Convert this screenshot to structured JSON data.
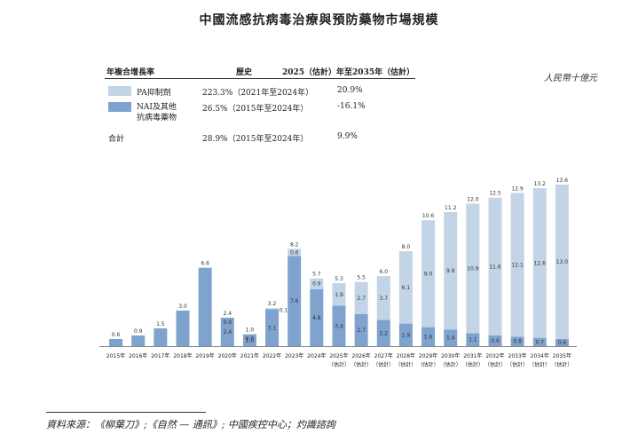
{
  "title": "中國流感抗病毒治療與預防藥物市場規模",
  "unit": "人民幣十億元",
  "cagr_table": {
    "headers": [
      "年複合增長率",
      "歷史",
      "2025（估計）年至2035年（估計）"
    ],
    "rows": [
      {
        "label": "PA抑制劑",
        "label2": "",
        "hist": "223.3%（2021年至2024年）",
        "forecast": "20.9%",
        "color": "#c3d4e6"
      },
      {
        "label": "NAI及其他",
        "label2": "抗病毒藥物",
        "hist": "26.5%（2015年至2024年）",
        "forecast": "-16.1%",
        "color": "#7fa2cf"
      },
      {
        "label": "合計",
        "label2": "",
        "hist": "28.9%（2015年至2024年）",
        "forecast": "9.9%",
        "color": ""
      }
    ]
  },
  "source": "資料來源：《柳葉刀》;《自然 — 通訊》; 中國疾控中心；灼識諮詢",
  "chart_data": {
    "type": "bar",
    "stacked": true,
    "categories": [
      "2015年",
      "2016年",
      "2017年",
      "2018年",
      "2019年",
      "2020年",
      "2021年",
      "2022年",
      "2023年",
      "2024年",
      "2025年",
      "2026年",
      "2027年",
      "2028年",
      "2029年",
      "2030年",
      "2031年",
      "2032年",
      "2033年",
      "2034年",
      "2035年"
    ],
    "category_sub": [
      "",
      "",
      "",
      "",
      "",
      "",
      "",
      "",
      "",
      "",
      "（估計）",
      "（估計）",
      "（估計）",
      "（估計）",
      "（估計）",
      "（估計）",
      "（估計）",
      "（估計）",
      "（估計）",
      "（估計）",
      "（估計）"
    ],
    "series": [
      {
        "name": "NAI及其他抗病毒藥物",
        "color": "#7fa2cf",
        "values": [
          0.6,
          0.9,
          1.5,
          3.0,
          6.6,
          2.4,
          1.0,
          3.1,
          7.6,
          4.8,
          3.4,
          2.7,
          2.2,
          1.9,
          1.6,
          1.4,
          1.1,
          0.9,
          0.8,
          0.7,
          0.6
        ]
      },
      {
        "name": "PA抑制劑",
        "color": "#c3d4e6",
        "values": [
          null,
          null,
          null,
          null,
          null,
          0.0,
          0.0,
          0.1,
          0.6,
          0.9,
          1.9,
          2.7,
          3.7,
          6.1,
          9.0,
          9.9,
          10.9,
          11.6,
          12.1,
          12.6,
          13.0
        ]
      }
    ],
    "totals": [
      0.6,
      0.9,
      1.5,
      3.0,
      6.6,
      2.4,
      1.0,
      3.2,
      8.2,
      5.7,
      5.3,
      5.5,
      6.0,
      8.0,
      10.6,
      11.2,
      12.0,
      12.5,
      12.9,
      13.2,
      13.6
    ],
    "ylim": [
      0,
      14
    ]
  }
}
